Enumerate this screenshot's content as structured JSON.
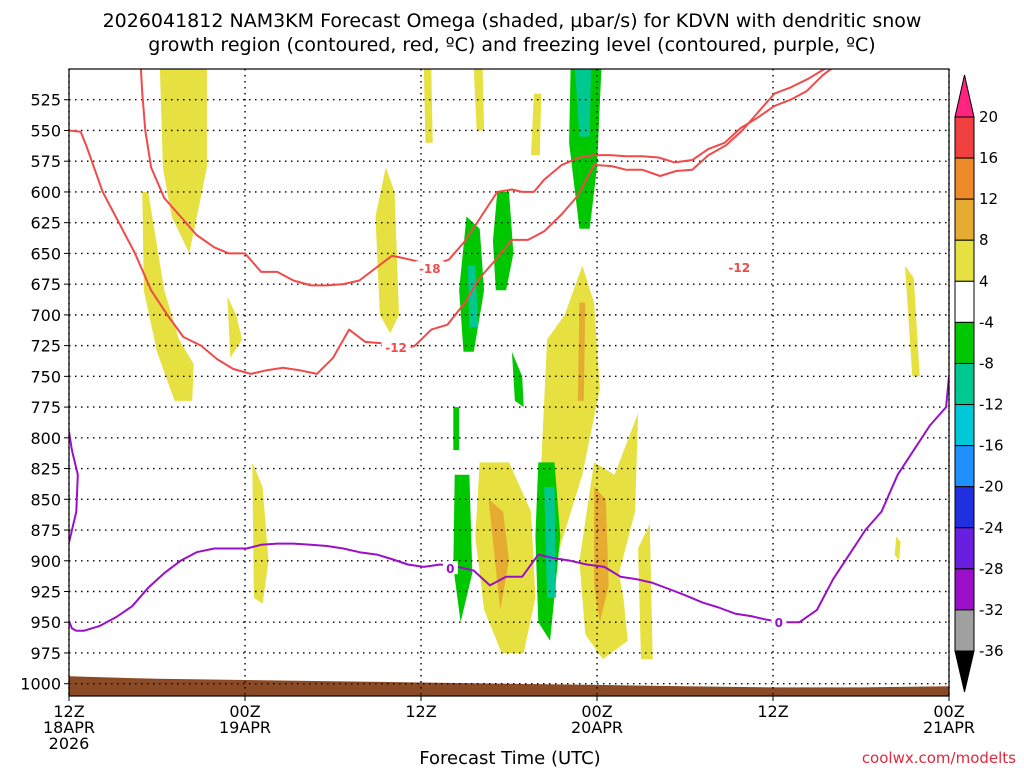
{
  "title_line1": "2026041812 NAM3KM Forecast Omega (shaded, µbar/s) for KDVN with dendritic snow",
  "title_line2": "growth region (contoured, red, ºC) and freezing level (contoured, purple, ºC)",
  "credit": "coolwx.com/modelts",
  "chart_data": {
    "type": "heatmap",
    "title": "2026041812 NAM3KM Forecast Omega (shaded, µbar/s) for KDVN with dendritic snow growth region (contoured, red, ºC) and freezing level (contoured, purple, ºC)",
    "xlabel": "Forecast Time (UTC)",
    "ylabel": "",
    "xlim_hours": [
      0,
      60
    ],
    "ylim_hpa": [
      1010,
      500
    ],
    "y_reversed": true,
    "grid": true,
    "y_ticks": [
      525,
      550,
      575,
      600,
      625,
      650,
      675,
      700,
      725,
      750,
      775,
      800,
      825,
      850,
      875,
      900,
      925,
      950,
      975,
      1000
    ],
    "x_ticks": [
      {
        "hour": 0,
        "lines": [
          "12Z",
          "18APR",
          "2026"
        ]
      },
      {
        "hour": 12,
        "lines": [
          "00Z",
          "19APR"
        ]
      },
      {
        "hour": 24,
        "lines": [
          "12Z",
          ""
        ]
      },
      {
        "hour": 36,
        "lines": [
          "00Z",
          "20APR"
        ]
      },
      {
        "hour": 48,
        "lines": [
          "12Z",
          ""
        ]
      },
      {
        "hour": 60,
        "lines": [
          "00Z",
          "21APR"
        ]
      }
    ],
    "colorbar": {
      "labels": [
        "20",
        "16",
        "12",
        "8",
        "4",
        "-4",
        "-8",
        "-12",
        "-16",
        "-20",
        "-24",
        "-28",
        "-32",
        "-36"
      ],
      "bins": [
        {
          "color": "#ff2480",
          "label": ">20"
        },
        {
          "color": "#f04040",
          "label": "16 to 20"
        },
        {
          "color": "#ef8a2a",
          "label": "12 to 16"
        },
        {
          "color": "#e6ac32",
          "label": "8 to 12"
        },
        {
          "color": "#e6e040",
          "label": "4 to 8"
        },
        {
          "color": "#ffffff",
          "label": "-4 to 4"
        },
        {
          "color": "#00c800",
          "label": "-8 to -4"
        },
        {
          "color": "#00c890",
          "label": "-12 to -8"
        },
        {
          "color": "#00c8d8",
          "label": "-16 to -12"
        },
        {
          "color": "#1e90ff",
          "label": "-20 to -16"
        },
        {
          "color": "#2030e0",
          "label": "-24 to -20"
        },
        {
          "color": "#6a1ee0",
          "label": "-28 to -24"
        },
        {
          "color": "#9a10c8",
          "label": "-32 to -28"
        },
        {
          "color": "#a0a0a0",
          "label": "-36 to -32"
        },
        {
          "color": "#000000",
          "label": "<-36"
        }
      ]
    },
    "omega_regions": [
      {
        "color": "#e6e040",
        "hours": [
          6.2,
          6.8,
          8.0,
          9.4,
          9.4,
          8.2,
          7.0,
          6.4
        ],
        "p": [
          500,
          500,
          500,
          500,
          580,
          650,
          620,
          580
        ]
      },
      {
        "color": "#e6e040",
        "hours": [
          5.0,
          5.4,
          6.5,
          7.5,
          8.5,
          8.4,
          7.2,
          6.0,
          5.1
        ],
        "p": [
          600,
          600,
          680,
          720,
          740,
          770,
          770,
          730,
          680
        ]
      },
      {
        "color": "#e6e040",
        "hours": [
          10.8,
          11.4,
          11.8,
          11.0
        ],
        "p": [
          685,
          700,
          720,
          735
        ]
      },
      {
        "color": "#e6e040",
        "hours": [
          12.5,
          13.2,
          13.6,
          13.2,
          12.6
        ],
        "p": [
          820,
          840,
          900,
          935,
          930
        ]
      },
      {
        "color": "#e6e040",
        "hours": [
          21.6,
          22.2,
          22.5,
          21.9,
          21.2,
          20.9
        ],
        "p": [
          580,
          600,
          700,
          715,
          700,
          620
        ]
      },
      {
        "color": "#e6e040",
        "hours": [
          24.2,
          24.7,
          24.8,
          24.3
        ],
        "p": [
          500,
          500,
          560,
          560
        ]
      },
      {
        "color": "#e6e040",
        "hours": [
          27.6,
          28.2,
          28.3,
          27.8
        ],
        "p": [
          500,
          500,
          550,
          550
        ]
      },
      {
        "color": "#e6e040",
        "hours": [
          31.7,
          32.2,
          32.1,
          31.5
        ],
        "p": [
          520,
          520,
          570,
          570
        ]
      },
      {
        "color": "#e6e040",
        "hours": [
          28.0,
          30.0,
          31.5,
          31.8,
          31.0,
          29.5,
          28.3,
          27.7
        ],
        "p": [
          820,
          820,
          860,
          930,
          975,
          975,
          940,
          880
        ]
      },
      {
        "color": "#e6e040",
        "hours": [
          32.6,
          33.8,
          35.0,
          35.8,
          36.2,
          35.0,
          33.2,
          32.5,
          32.2
        ],
        "p": [
          720,
          700,
          660,
          690,
          760,
          830,
          900,
          920,
          820
        ]
      },
      {
        "color": "#e6e040",
        "hours": [
          35.8,
          37.2,
          38.8,
          38.6,
          37.5,
          37.8,
          38.1,
          36.4,
          35.2,
          34.8
        ],
        "p": [
          820,
          830,
          780,
          860,
          910,
          930,
          965,
          980,
          960,
          900
        ]
      },
      {
        "color": "#e6e040",
        "hours": [
          38.8,
          39.6,
          39.8,
          39.0
        ],
        "p": [
          890,
          870,
          980,
          980
        ]
      },
      {
        "color": "#e6e040",
        "hours": [
          57.0,
          57.6,
          58.0,
          57.5
        ],
        "p": [
          660,
          670,
          750,
          750
        ]
      },
      {
        "color": "#e6e040",
        "hours": [
          56.4,
          56.7,
          56.6,
          56.3
        ],
        "p": [
          880,
          885,
          900,
          895
        ]
      },
      {
        "color": "#e6ac32",
        "hours": [
          28.6,
          29.6,
          30.0,
          29.4
        ],
        "p": [
          850,
          860,
          900,
          940
        ]
      },
      {
        "color": "#e6ac32",
        "hours": [
          34.8,
          35.2,
          35.1,
          34.7
        ],
        "p": [
          690,
          690,
          770,
          770
        ]
      },
      {
        "color": "#e6ac32",
        "hours": [
          35.8,
          36.6,
          36.8,
          36.2,
          35.8
        ],
        "p": [
          840,
          850,
          920,
          950,
          920
        ]
      },
      {
        "color": "#00c800",
        "hours": [
          27.1,
          28.0,
          28.3,
          27.6,
          26.9,
          26.6
        ],
        "p": [
          620,
          630,
          680,
          730,
          730,
          680
        ]
      },
      {
        "color": "#00c800",
        "hours": [
          29.2,
          30.0,
          30.3,
          29.8,
          29.1,
          28.9
        ],
        "p": [
          600,
          600,
          650,
          680,
          680,
          640
        ]
      },
      {
        "color": "#00c800",
        "hours": [
          30.2,
          30.9,
          31.0,
          30.4
        ],
        "p": [
          730,
          750,
          775,
          770
        ]
      },
      {
        "color": "#00c800",
        "hours": [
          26.2,
          26.6,
          26.6,
          26.2
        ],
        "p": [
          775,
          775,
          810,
          810
        ]
      },
      {
        "color": "#00c800",
        "hours": [
          26.3,
          27.3,
          27.5,
          26.7,
          26.2
        ],
        "p": [
          830,
          830,
          910,
          950,
          905
        ]
      },
      {
        "color": "#00c800",
        "hours": [
          32.0,
          33.1,
          33.5,
          32.8,
          32.0,
          31.8
        ],
        "p": [
          820,
          820,
          880,
          965,
          950,
          880
        ]
      },
      {
        "color": "#00c800",
        "hours": [
          34.2,
          36.3,
          36.0,
          35.5,
          34.8,
          34.1
        ],
        "p": [
          500,
          500,
          580,
          630,
          630,
          560
        ]
      },
      {
        "color": "#00c890",
        "hours": [
          27.2,
          27.7,
          27.9,
          27.3
        ],
        "p": [
          660,
          660,
          710,
          710
        ]
      },
      {
        "color": "#00c890",
        "hours": [
          32.4,
          33.1,
          33.2,
          32.6
        ],
        "p": [
          840,
          840,
          930,
          930
        ]
      },
      {
        "color": "#00c890",
        "hours": [
          34.5,
          35.6,
          35.5,
          34.8
        ],
        "p": [
          500,
          500,
          555,
          555
        ]
      },
      {
        "color": "#8b4a26",
        "hours": [
          0,
          6,
          12,
          18,
          24,
          30,
          36,
          42,
          48,
          54,
          60,
          60,
          0
        ],
        "p": [
          994,
          996,
          997,
          998,
          999,
          1000,
          1001,
          1002,
          1003,
          1003,
          1002,
          1010,
          1010
        ]
      }
    ],
    "contours": [
      {
        "name": "dendritic-minus12",
        "color": "#f04a4a",
        "label": "-12",
        "hours": [
          0,
          0.8,
          1.2,
          2.3,
          3.4,
          4.5,
          5.6,
          6.7,
          7.8,
          9.0,
          10.1,
          11.2,
          12.4,
          13.5,
          14.6,
          15.7,
          16.9,
          18.0,
          19.1,
          20.2,
          21.3,
          22.4,
          23.6,
          24.7,
          25.8,
          27.0,
          28.0,
          29.1,
          30.2,
          31.3,
          32.4,
          33.6,
          34.7,
          35.8,
          37.0,
          38.0,
          39.1,
          40.3,
          41.4,
          42.5,
          43.6,
          44.8,
          45.9,
          47.0,
          48.1,
          49.2,
          50.4,
          51.5,
          52.6,
          53.7,
          54.8,
          55.9,
          57.1,
          58.2,
          59.3,
          60
        ],
        "p": [
          550,
          551,
          563,
          600,
          625,
          650,
          680,
          700,
          718,
          725,
          736,
          744,
          748,
          745,
          743,
          745,
          748,
          735,
          712,
          722,
          723,
          730,
          725,
          712,
          708,
          690,
          670,
          655,
          639,
          639,
          632,
          618,
          603,
          578,
          579,
          582,
          582,
          587,
          583,
          582,
          570,
          562,
          550,
          535,
          520,
          515,
          508,
          500,
          497,
          490,
          488,
          485,
          478,
          470,
          462,
          455
        ],
        "label_hour": 22.3,
        "label_p": 726
      },
      {
        "name": "dendritic-minus18",
        "color": "#f04a4a",
        "label": "-18",
        "hours": [
          4.9,
          5.0,
          5.2,
          5.6,
          6.5,
          7.6,
          8.7,
          9.9,
          10.9,
          12.0,
          13.1,
          14.2,
          15.3,
          16.5,
          17.6,
          18.7,
          19.8,
          20.9,
          22.0,
          22.5,
          23.6,
          24.7,
          25.9,
          27.0,
          28.1,
          29.2,
          30.2,
          30.9,
          31.7,
          32.4,
          33.6,
          34.8,
          35.8,
          36.9,
          38.0,
          39.1,
          40.2,
          41.3,
          42.5,
          43.6,
          44.7,
          45.8,
          46.9,
          48.1,
          49.2,
          50.3,
          51.4,
          52.5,
          53.6,
          54.8,
          55.8,
          56.9,
          58.0,
          59.2,
          60
        ],
        "p": [
          500,
          520,
          550,
          580,
          605,
          620,
          635,
          645,
          650,
          650,
          665,
          665,
          672,
          676,
          676,
          675,
          672,
          662,
          652,
          653,
          656,
          660,
          655,
          640,
          620,
          600,
          598,
          600,
          600,
          590,
          578,
          572,
          570,
          570,
          571,
          571,
          572,
          576,
          574,
          565,
          560,
          548,
          540,
          530,
          525,
          518,
          505,
          495,
          488,
          475,
          460,
          440,
          420,
          400,
          390
        ],
        "label_hour": 24.6,
        "label_p": 662
      },
      {
        "name": "freezing-level",
        "color": "#9a10c8",
        "label": "0",
        "hours": [
          0,
          0.2,
          0.5,
          1.0,
          2.1,
          3.2,
          4.3,
          5.4,
          6.5,
          7.6,
          8.7,
          9.9,
          11.0,
          12.1,
          13.1,
          14.2,
          15.3,
          16.5,
          17.6,
          18.7,
          19.8,
          21.0,
          22.1,
          23.1,
          24.2,
          25.3,
          26.5,
          27.6,
          28.7,
          29.8,
          30.9,
          32.0,
          33.1,
          34.2,
          35.3,
          36.5,
          37.6,
          38.7,
          39.8,
          40.9,
          42.0,
          43.2,
          44.3,
          45.4,
          46.5,
          47.6,
          48.7,
          49.8,
          51.0,
          52.1,
          53.2,
          54.3,
          55.4,
          56.5,
          57.6,
          58.7,
          59.8,
          60
        ],
        "p": [
          949,
          955,
          957,
          957,
          953,
          946,
          937,
          922,
          910,
          900,
          893,
          890,
          890,
          890,
          887,
          886,
          886,
          887,
          888,
          890,
          893,
          895,
          899,
          903,
          905,
          903,
          905,
          908,
          920,
          913,
          913,
          895,
          898,
          900,
          903,
          905,
          913,
          915,
          918,
          923,
          928,
          934,
          938,
          943,
          945,
          948,
          950,
          950,
          940,
          915,
          895,
          875,
          860,
          830,
          810,
          790,
          775,
          750
        ],
        "label_hour": 48.4,
        "label_p": 950
      },
      {
        "name": "freezing-level-left",
        "color": "#9a10c8",
        "label": "",
        "hours": [
          0,
          0.2,
          0.6,
          0.5,
          0.1,
          0
        ],
        "p": [
          795,
          810,
          830,
          860,
          880,
          885
        ],
        "label_hour": null,
        "label_p": null
      }
    ],
    "extra_labels": [
      {
        "text": "-12",
        "hour": 45.7,
        "p": 661
      },
      {
        "text": "0",
        "hour": 26.0,
        "p": 906
      }
    ]
  }
}
